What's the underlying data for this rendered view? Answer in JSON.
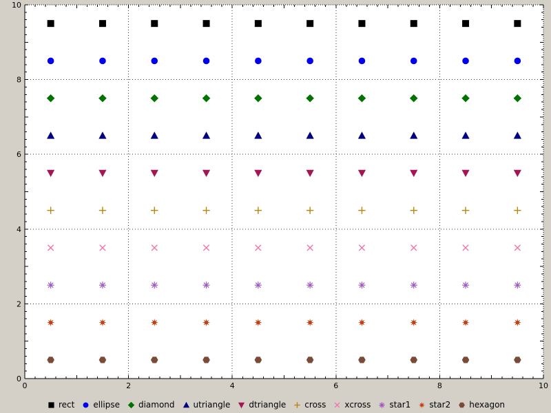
{
  "chart_data": {
    "type": "scatter",
    "title": "",
    "xlim": [
      0,
      10
    ],
    "ylim": [
      0,
      10
    ],
    "x_ticks": [
      0,
      2,
      4,
      6,
      8,
      10
    ],
    "y_ticks": [
      0,
      2,
      4,
      6,
      8,
      10
    ],
    "x_tick_labels": [
      "0",
      "2",
      "4",
      "6",
      "8",
      "10"
    ],
    "y_tick_labels": [
      "0",
      "2",
      "4",
      "6",
      "8",
      "10"
    ],
    "minor_tick_step": 0.2,
    "grid": {
      "x": [
        2,
        4,
        6,
        8
      ],
      "y": [
        2,
        4,
        6,
        8
      ],
      "style": "dotted"
    },
    "x_values": [
      0.5,
      1.5,
      2.5,
      3.5,
      4.5,
      5.5,
      6.5,
      7.5,
      8.5,
      9.5
    ],
    "series": [
      {
        "name": "rect",
        "marker": "rect",
        "color": "#000000",
        "y": 9.5
      },
      {
        "name": "ellipse",
        "marker": "ellipse",
        "color": "#0000ee",
        "y": 8.5
      },
      {
        "name": "diamond",
        "marker": "diamond",
        "color": "#007200",
        "y": 7.5
      },
      {
        "name": "utriangle",
        "marker": "utriangle",
        "color": "#000080",
        "y": 6.5
      },
      {
        "name": "dtriangle",
        "marker": "dtriangle",
        "color": "#a51554",
        "y": 5.5
      },
      {
        "name": "cross",
        "marker": "cross",
        "color": "#b8860b",
        "y": 4.5
      },
      {
        "name": "xcross",
        "marker": "xcross",
        "color": "#ec77ab",
        "y": 3.5
      },
      {
        "name": "star1",
        "marker": "star1",
        "color": "#a058c0",
        "y": 2.5
      },
      {
        "name": "star2",
        "marker": "star2",
        "color": "#c43c10",
        "y": 1.5
      },
      {
        "name": "hexagon",
        "marker": "hexagon",
        "color": "#7b4b3a",
        "y": 0.5
      }
    ],
    "legend": {
      "position": "bottom",
      "entries": [
        "rect",
        "ellipse",
        "diamond",
        "utriangle",
        "dtriangle",
        "cross",
        "xcross",
        "star1",
        "star2",
        "hexagon"
      ]
    }
  },
  "colors": {
    "background": "#d4d0c8",
    "plot_background": "#ffffff",
    "grid": "#303030",
    "axis": "#000000",
    "tick_label": "#000000"
  }
}
